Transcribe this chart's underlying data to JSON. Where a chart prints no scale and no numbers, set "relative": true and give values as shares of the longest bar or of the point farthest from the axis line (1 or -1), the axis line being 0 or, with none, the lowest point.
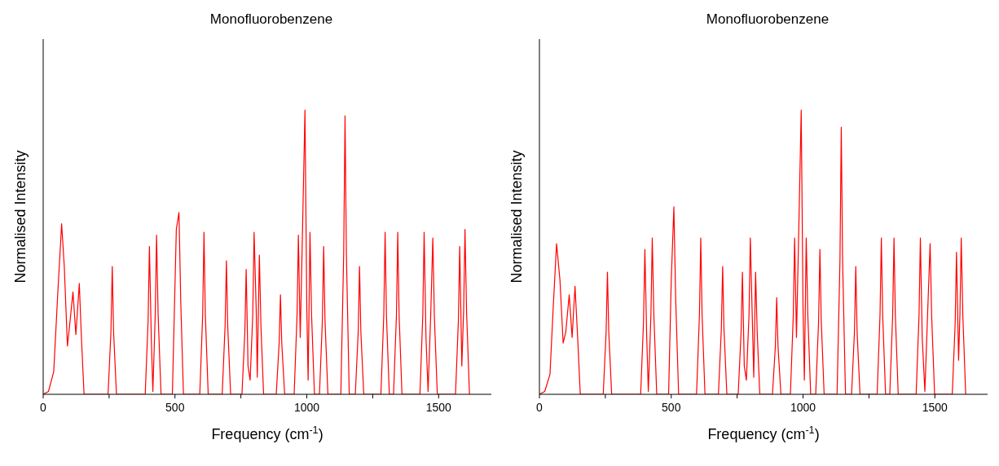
{
  "chart_data": [
    {
      "type": "line",
      "title": "Monofluorobenzene",
      "xlabel": "Frequency (cm$^{-1}$)",
      "ylabel": "Normalised Intensity",
      "relative": true,
      "xlim": [
        0,
        1700
      ],
      "xticks": [
        0,
        {
          "value": 250,
          "label": null
        },
        500,
        {
          "value": 750,
          "label": null
        },
        1000,
        {
          "value": 1250,
          "label": null
        },
        1500
      ],
      "marker": "none",
      "line_style": "solid",
      "series": [
        {
          "color": "#ff0000",
          "x": [
            0,
            20,
            40,
            55,
            70,
            80,
            92,
            100,
            113,
            124,
            137,
            145,
            155,
            246,
            257,
            262,
            267,
            278,
            387,
            398,
            403,
            410,
            416,
            425,
            430,
            436,
            447,
            490,
            505,
            515,
            522,
            532,
            594,
            605,
            610,
            615,
            626,
            679,
            690,
            695,
            700,
            711,
            754,
            765,
            770,
            777,
            785,
            795,
            800,
            808,
            812,
            820,
            826,
            836,
            884,
            895,
            900,
            905,
            916,
            952,
            963,
            968,
            975,
            982,
            993,
            1000,
            1005,
            1012,
            1018,
            1029,
            1048,
            1059,
            1064,
            1069,
            1080,
            1129,
            1140,
            1145,
            1150,
            1161,
            1184,
            1195,
            1200,
            1205,
            1216,
            1281,
            1292,
            1297,
            1302,
            1313,
            1329,
            1340,
            1345,
            1350,
            1361,
            1429,
            1440,
            1445,
            1452,
            1460,
            1470,
            1478,
            1484,
            1495,
            1564,
            1575,
            1580,
            1588,
            1595,
            1600,
            1606,
            1617
          ],
          "values": [
            0,
            0.01,
            0.08,
            0.35,
            0.6,
            0.45,
            0.17,
            0.24,
            0.36,
            0.21,
            0.39,
            0.2,
            0,
            0,
            0.22,
            0.45,
            0.22,
            0,
            0,
            0.26,
            0.52,
            0.2,
            0.01,
            0.28,
            0.56,
            0.28,
            0,
            0,
            0.58,
            0.64,
            0.32,
            0,
            0,
            0.28,
            0.57,
            0.28,
            0,
            0,
            0.24,
            0.47,
            0.24,
            0,
            0,
            0.22,
            0.44,
            0.1,
            0.05,
            0.28,
            0.57,
            0.3,
            0.06,
            0.49,
            0.24,
            0,
            0,
            0.18,
            0.35,
            0.18,
            0,
            0,
            0.28,
            0.56,
            0.2,
            0.5,
            1,
            0.3,
            0.05,
            0.57,
            0.28,
            0,
            0,
            0.26,
            0.52,
            0.26,
            0,
            0,
            0.5,
            0.98,
            0.5,
            0,
            0,
            0.22,
            0.45,
            0.22,
            0,
            0,
            0.28,
            0.57,
            0.28,
            0,
            0,
            0.28,
            0.57,
            0.28,
            0,
            0,
            0.28,
            0.57,
            0.2,
            0.01,
            0.28,
            0.55,
            0.27,
            0,
            0,
            0.26,
            0.52,
            0.1,
            0.3,
            0.58,
            0.29,
            0
          ]
        }
      ]
    },
    {
      "type": "line",
      "title": "Monofluorobenzene",
      "xlabel": "Frequency (cm$^{-1}$)",
      "ylabel": "Normalised Intensity",
      "relative": true,
      "xlim": [
        0,
        1700
      ],
      "xticks": [
        0,
        {
          "value": 250,
          "label": null
        },
        500,
        {
          "value": 750,
          "label": null
        },
        1000,
        {
          "value": 1250,
          "label": null
        },
        1500
      ],
      "marker": "none",
      "line_style": "solid",
      "series": [
        {
          "color": "#ff0000",
          "x": [
            0,
            20,
            40,
            52,
            65,
            78,
            90,
            100,
            113,
            124,
            135,
            145,
            155,
            242,
            253,
            258,
            263,
            274,
            384,
            395,
            400,
            407,
            413,
            423,
            428,
            434,
            445,
            490,
            500,
            510,
            517,
            528,
            596,
            607,
            612,
            617,
            628,
            679,
            690,
            695,
            700,
            711,
            754,
            765,
            770,
            777,
            785,
            795,
            800,
            808,
            813,
            820,
            826,
            836,
            884,
            895,
            900,
            905,
            916,
            952,
            963,
            968,
            975,
            982,
            993,
            1000,
            1005,
            1012,
            1018,
            1029,
            1048,
            1059,
            1064,
            1069,
            1080,
            1129,
            1140,
            1145,
            1150,
            1161,
            1184,
            1195,
            1200,
            1205,
            1216,
            1281,
            1292,
            1297,
            1302,
            1313,
            1329,
            1340,
            1345,
            1350,
            1361,
            1429,
            1440,
            1445,
            1452,
            1462,
            1472,
            1482,
            1488,
            1499,
            1566,
            1577,
            1582,
            1590,
            1595,
            1600,
            1606,
            1617
          ],
          "values": [
            0,
            0.01,
            0.07,
            0.3,
            0.53,
            0.4,
            0.18,
            0.22,
            0.35,
            0.2,
            0.38,
            0.2,
            0,
            0,
            0.22,
            0.43,
            0.22,
            0,
            0,
            0.26,
            0.51,
            0.2,
            0.01,
            0.28,
            0.55,
            0.28,
            0,
            0,
            0.4,
            0.66,
            0.33,
            0,
            0,
            0.28,
            0.55,
            0.28,
            0,
            0,
            0.23,
            0.45,
            0.23,
            0,
            0,
            0.22,
            0.43,
            0.1,
            0.05,
            0.28,
            0.55,
            0.25,
            0.06,
            0.43,
            0.22,
            0,
            0,
            0.17,
            0.34,
            0.17,
            0,
            0,
            0.28,
            0.55,
            0.2,
            0.5,
            1,
            0.3,
            0.05,
            0.55,
            0.28,
            0,
            0,
            0.26,
            0.51,
            0.26,
            0,
            0,
            0.47,
            0.94,
            0.47,
            0,
            0,
            0.22,
            0.45,
            0.22,
            0,
            0,
            0.28,
            0.55,
            0.28,
            0,
            0,
            0.28,
            0.55,
            0.28,
            0,
            0,
            0.28,
            0.55,
            0.2,
            0.01,
            0.27,
            0.53,
            0.27,
            0,
            0,
            0.25,
            0.5,
            0.12,
            0.28,
            0.55,
            0.28,
            0
          ]
        }
      ]
    }
  ]
}
